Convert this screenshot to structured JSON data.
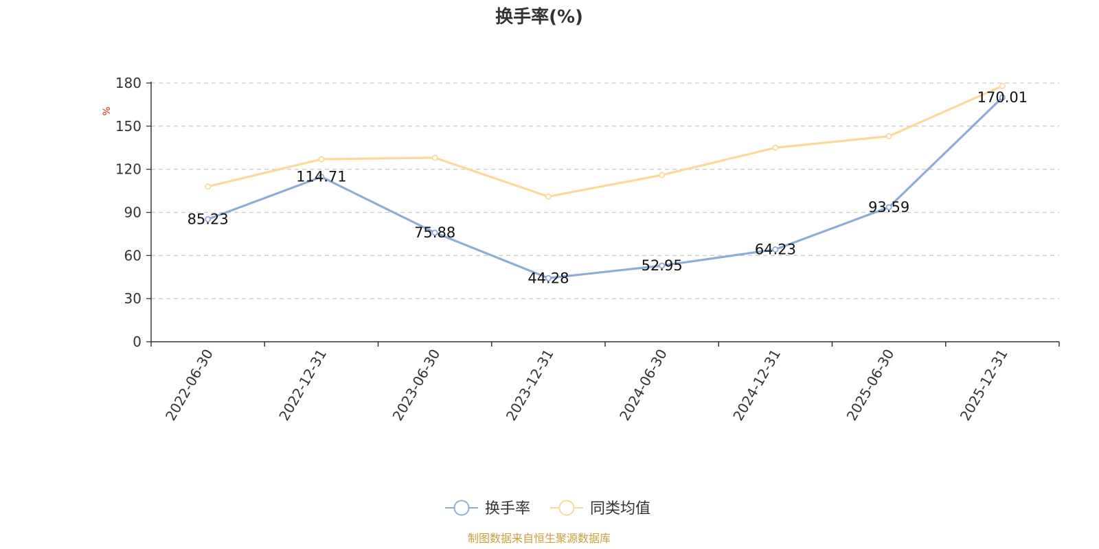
{
  "chart_data": {
    "type": "line",
    "title": "换手率(%)",
    "ylabel": "%",
    "categories": [
      "2022-06-30",
      "2022-12-31",
      "2023-06-30",
      "2023-12-31",
      "2024-06-30",
      "2024-12-31",
      "2025-06-30",
      "2025-12-31"
    ],
    "ylim": [
      0,
      180
    ],
    "yticks": [
      0,
      30,
      60,
      90,
      120,
      150,
      180
    ],
    "grid": true,
    "legend_position": "bottom",
    "series": [
      {
        "name": "换手率",
        "color": "#8eadd6",
        "values": [
          85.23,
          114.71,
          75.88,
          44.28,
          52.95,
          64.23,
          93.59,
          170.01
        ],
        "labels": [
          "85.23",
          "114.71",
          "75.88",
          "44.28",
          "52.95",
          "64.23",
          "93.59",
          "170.01"
        ]
      },
      {
        "name": "同类均值",
        "color": "#fad99b",
        "values": [
          108,
          127,
          128,
          101,
          116,
          135,
          143,
          178
        ]
      }
    ]
  },
  "source": "制图数据来自恒生聚源数据库",
  "colors": {
    "axis": "#333333",
    "grid": "#cccccc",
    "unit": "#e0241b",
    "source": "#c9a03c"
  }
}
